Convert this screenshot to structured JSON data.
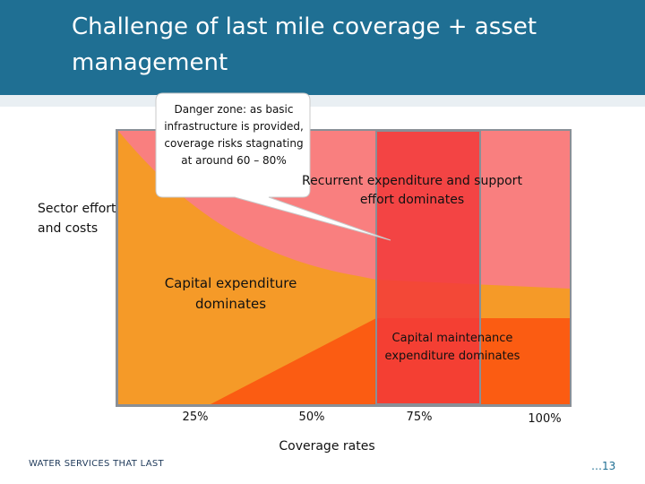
{
  "title": "Challenge of last mile coverage + asset management",
  "y_axis_label": "Sector effort and costs",
  "x_axis_label": "Coverage rates",
  "x_ticks": [
    "25%",
    "50%",
    "75%",
    "100%"
  ],
  "zones": {
    "capital": "Capital expenditure dominates",
    "recurrent": "Recurrent expenditure and support effort dominates",
    "maintenance": "Capital maintenance expenditure dominates"
  },
  "callout": "Danger zone: as basic infrastructure is provided, coverage risks stagnating  at around 60 – 80%",
  "footer": "WATER SERVICES THAT LAST",
  "page_number": "…13",
  "colors": {
    "header": "#1f6f93",
    "recurrent_area": "#f97f7f",
    "capital_area": "#f59a28",
    "maintenance_area": "#fb5c12",
    "danger_band": "#f23a3a"
  }
}
